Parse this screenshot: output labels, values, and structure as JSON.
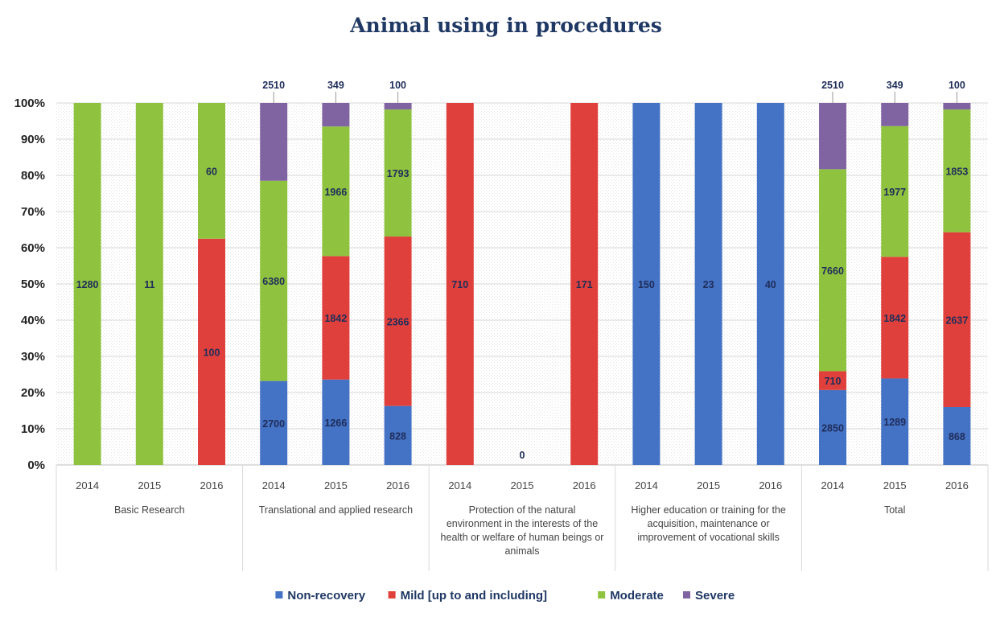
{
  "chart_data": {
    "type": "bar",
    "stacked": "percent",
    "title": "Animal using in procedures",
    "y_ticks": [
      "0%",
      "10%",
      "20%",
      "30%",
      "40%",
      "50%",
      "60%",
      "70%",
      "80%",
      "90%",
      "100%"
    ],
    "ylim": [
      0,
      100
    ],
    "grid": true,
    "legend_position": "bottom",
    "series": [
      {
        "name": "Non-recovery",
        "color": "#4472c4"
      },
      {
        "name": "Mild [up to and including]",
        "color": "#e0403b"
      },
      {
        "name": "Moderate",
        "color": "#8fc23f"
      },
      {
        "name": "Severe",
        "color": "#8064a2"
      }
    ],
    "groups": [
      {
        "label": "Basic Research",
        "label_lines": [
          "Basic Research"
        ],
        "bars": [
          {
            "year": "2014",
            "segments": [
              {
                "series": "Moderate",
                "percent": 100,
                "label": "1280"
              }
            ]
          },
          {
            "year": "2015",
            "segments": [
              {
                "series": "Moderate",
                "percent": 100,
                "label": "11"
              }
            ]
          },
          {
            "year": "2016",
            "segments": [
              {
                "series": "Mild [up to and including]",
                "percent": 62.5,
                "label": "100"
              },
              {
                "series": "Moderate",
                "percent": 37.5,
                "label": "60"
              }
            ]
          }
        ]
      },
      {
        "label": "Translational and applied research",
        "label_lines": [
          "Translational and applied research"
        ],
        "bars": [
          {
            "year": "2014",
            "top_label": "2510",
            "segments": [
              {
                "series": "Non-recovery",
                "percent": 23.2,
                "label": "2700"
              },
              {
                "series": "Moderate",
                "percent": 55.3,
                "label": "6380"
              },
              {
                "series": "Severe",
                "percent": 21.5,
                "label": ""
              }
            ]
          },
          {
            "year": "2015",
            "top_label": "349",
            "segments": [
              {
                "series": "Non-recovery",
                "percent": 23.6,
                "label": "1266"
              },
              {
                "series": "Mild [up to and including]",
                "percent": 34.1,
                "label": "1842"
              },
              {
                "series": "Moderate",
                "percent": 35.8,
                "label": "1966"
              },
              {
                "series": "Severe",
                "percent": 6.5,
                "label": ""
              }
            ]
          },
          {
            "year": "2016",
            "top_label": "100",
            "segments": [
              {
                "series": "Non-recovery",
                "percent": 16.3,
                "label": "828"
              },
              {
                "series": "Mild [up to and including]",
                "percent": 46.8,
                "label": "2366"
              },
              {
                "series": "Moderate",
                "percent": 35.1,
                "label": "1793"
              },
              {
                "series": "Severe",
                "percent": 1.8,
                "label": ""
              }
            ]
          }
        ]
      },
      {
        "label": "Protection of the natural environment in the interests of the health or welfare of human beings or animals",
        "label_lines": [
          "Protection of the natural",
          "environment in the interests of the",
          "health or welfare of human beings or",
          "animals"
        ],
        "bars": [
          {
            "year": "2014",
            "segments": [
              {
                "series": "Mild [up to and including]",
                "percent": 100,
                "label": "710"
              }
            ]
          },
          {
            "year": "2015",
            "top_label": "0",
            "segments": []
          },
          {
            "year": "2016",
            "segments": [
              {
                "series": "Mild [up to and including]",
                "percent": 100,
                "label": "171"
              }
            ]
          }
        ]
      },
      {
        "label": "Higher education or training for the acquisition, maintenance or improvement of vocational skills",
        "label_lines": [
          "Higher education or training for the",
          "acquisition, maintenance or",
          "improvement of vocational skills"
        ],
        "bars": [
          {
            "year": "2014",
            "segments": [
              {
                "series": "Non-recovery",
                "percent": 100,
                "label": "150"
              }
            ]
          },
          {
            "year": "2015",
            "segments": [
              {
                "series": "Non-recovery",
                "percent": 100,
                "label": "23"
              }
            ]
          },
          {
            "year": "2016",
            "segments": [
              {
                "series": "Non-recovery",
                "percent": 100,
                "label": "40"
              }
            ]
          }
        ]
      },
      {
        "label": "Total",
        "label_lines": [
          "Total"
        ],
        "bars": [
          {
            "year": "2014",
            "top_label": "2510",
            "segments": [
              {
                "series": "Non-recovery",
                "percent": 20.7,
                "label": "2850"
              },
              {
                "series": "Mild [up to and including]",
                "percent": 5.2,
                "label": "710"
              },
              {
                "series": "Moderate",
                "percent": 55.8,
                "label": "7660"
              },
              {
                "series": "Severe",
                "percent": 18.3,
                "label": ""
              }
            ]
          },
          {
            "year": "2015",
            "top_label": "349",
            "segments": [
              {
                "series": "Non-recovery",
                "percent": 23.9,
                "label": "1289"
              },
              {
                "series": "Mild [up to and including]",
                "percent": 33.6,
                "label": "1842"
              },
              {
                "series": "Moderate",
                "percent": 36.1,
                "label": "1977"
              },
              {
                "series": "Severe",
                "percent": 6.4,
                "label": ""
              }
            ]
          },
          {
            "year": "2016",
            "top_label": "100",
            "segments": [
              {
                "series": "Non-recovery",
                "percent": 16.0,
                "label": "868"
              },
              {
                "series": "Mild [up to and including]",
                "percent": 48.3,
                "label": "2637"
              },
              {
                "series": "Moderate",
                "percent": 33.9,
                "label": "1853"
              },
              {
                "series": "Severe",
                "percent": 1.8,
                "label": ""
              }
            ]
          }
        ]
      }
    ]
  }
}
